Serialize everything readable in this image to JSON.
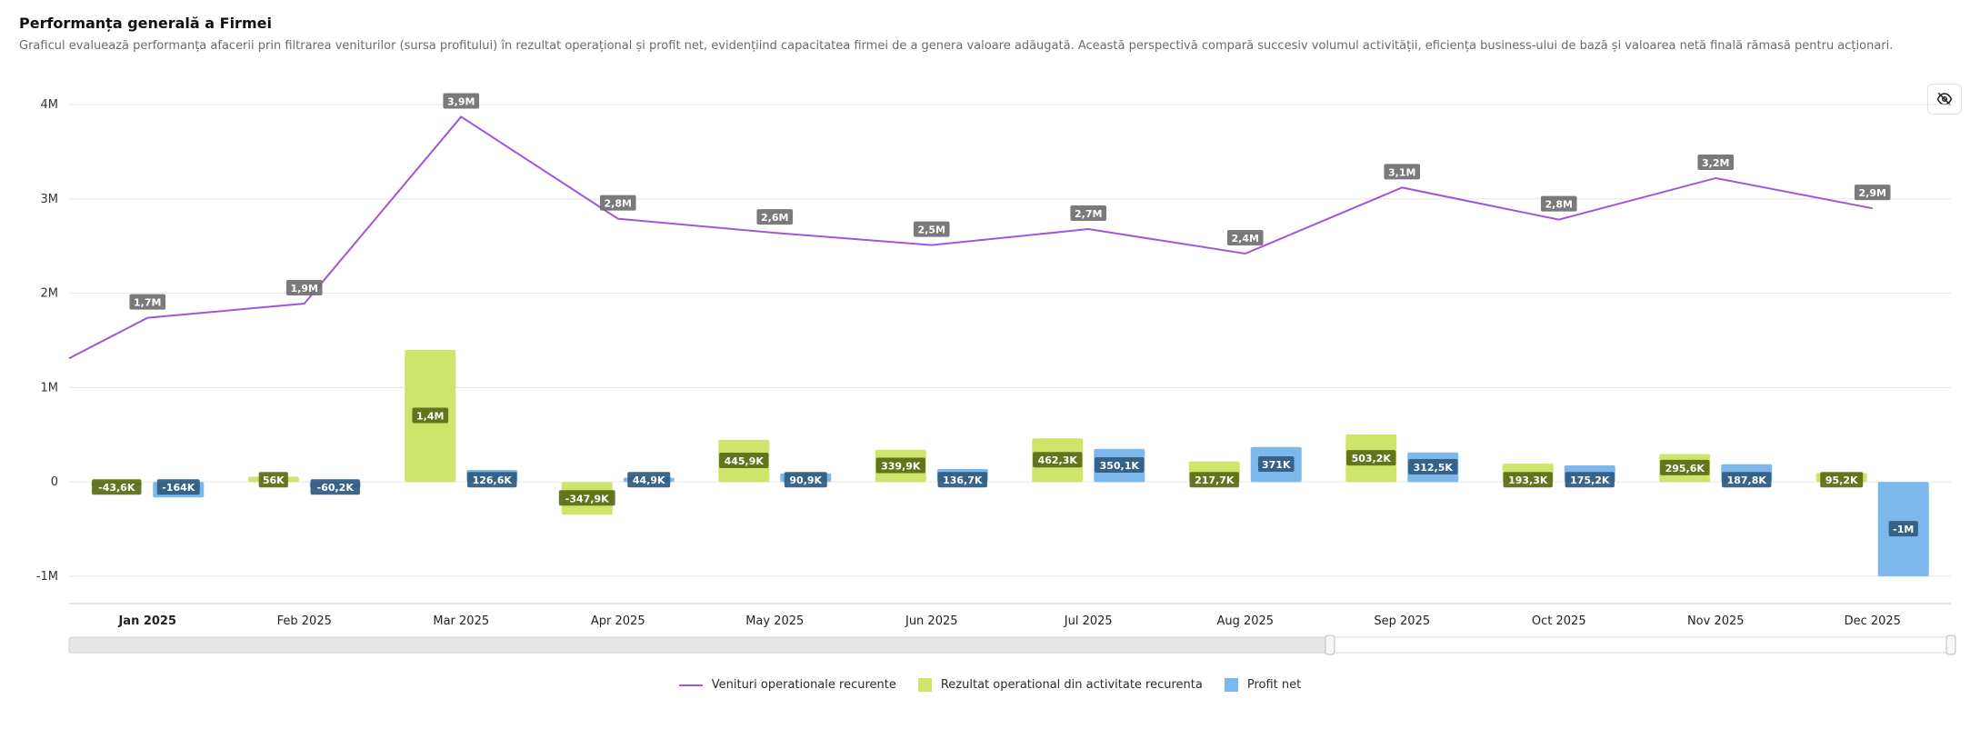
{
  "header": {
    "title": "Performanța generală a Firmei",
    "subtitle": "Graficul evaluează performanța afacerii prin filtrarea veniturilor (sursa profitului) în rezultat operațional și profit net, evidențiind capacitatea firmei de a genera valoare adăugată. Această perspectivă compară succesiv volumul activității, eficiența business-ului de bază și valoarea netă finală rămasă pentru acționari."
  },
  "toolbar": {
    "hide_icon": "eye-off-icon"
  },
  "chart_data": {
    "type": "bar",
    "categories": [
      "Jan 2025",
      "Feb 2025",
      "Mar 2025",
      "Apr 2025",
      "May 2025",
      "Jun 2025",
      "Jul 2025",
      "Aug 2025",
      "Sep 2025",
      "Oct 2025",
      "Nov 2025",
      "Dec 2025"
    ],
    "active_category": "Jan 2025",
    "ylim": [
      -1000000,
      4000000
    ],
    "yticks": [
      -1000000,
      0,
      1000000,
      2000000,
      3000000,
      4000000
    ],
    "ytick_labels": [
      "-1M",
      "0",
      "1M",
      "2M",
      "3M",
      "4M"
    ],
    "grid": true,
    "legend_position": "bottom",
    "series": [
      {
        "name": "Venituri operationale recurente",
        "type": "line",
        "color": "#a355d9",
        "values": [
          1740000,
          1890000,
          3870000,
          2790000,
          2640000,
          2510000,
          2680000,
          2420000,
          3120000,
          2780000,
          3220000,
          2900000
        ],
        "labels": [
          "1,7M",
          "1,9M",
          "3,9M",
          "2,8M",
          "2,6M",
          "2,5M",
          "2,7M",
          "2,4M",
          "3,1M",
          "2,8M",
          "3,2M",
          "2,9M"
        ],
        "line_start_value": 1310000
      },
      {
        "name": "Rezultat operational din activitate recurenta",
        "type": "bar",
        "color": "#cfe46b",
        "values": [
          -43600,
          56000,
          1400000,
          -347900,
          445900,
          339900,
          462300,
          217700,
          503200,
          193300,
          295600,
          95200
        ],
        "labels": [
          "-43,6K",
          "56K",
          "1,4M",
          "-347,9K",
          "445,9K",
          "339,9K",
          "462,3K",
          "217,7K",
          "503,2K",
          "193,3K",
          "295,6K",
          "95,2K"
        ]
      },
      {
        "name": "Profit net",
        "type": "bar",
        "color": "#7db8ec",
        "values": [
          -164000,
          -60200,
          126600,
          44900,
          90900,
          136700,
          350100,
          371000,
          312500,
          175200,
          187800,
          -1000000
        ],
        "labels": [
          "-164K",
          "-60,2K",
          "126,6K",
          "44,9K",
          "90,9K",
          "136,7K",
          "350,1K",
          "371K",
          "312,5K",
          "175,2K",
          "187,8K",
          "-1M"
        ]
      }
    ],
    "navigator": {
      "selected_fraction": 0.67
    }
  }
}
